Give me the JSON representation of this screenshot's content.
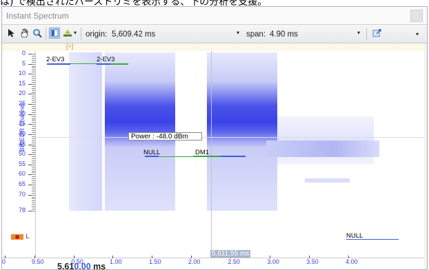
{
  "caption": "は) で検出されたバーストリミを表示する、下の分析を支援。",
  "window": {
    "title": "Instant Spectrum"
  },
  "toolbar": {
    "origin_label": "origin:",
    "origin_value": "5,609.42 ms",
    "span_label": "span:",
    "span_value": "4.90 ms",
    "icons": [
      "pointer-icon",
      "hand-icon",
      "zoom-icon",
      "view-icon",
      "display-options-icon",
      "export-icon"
    ]
  },
  "plot": {
    "strip_marker": "[+]",
    "y_axis": {
      "name": "BR/EDR Channel",
      "ticks": [
        "0",
        "5",
        "10",
        "15",
        "20",
        "25",
        "30",
        "35",
        "40",
        "45",
        "50",
        "55",
        "60",
        "65",
        "70",
        "78"
      ]
    },
    "x_axis": {
      "ticks": [
        "0",
        "9.50",
        "0.50",
        "1.00",
        "1.50",
        "2.00",
        "2.50",
        "3.00",
        "3.50",
        "4.00"
      ],
      "origin_prefix": "5,61",
      "origin_highlight": "0.00",
      "origin_unit": "ms"
    },
    "packets": [
      {
        "label": "2-EV3"
      },
      {
        "label": "2-EV3"
      },
      {
        "label": "NULL"
      },
      {
        "label": "DM1"
      },
      {
        "label": "NULL"
      }
    ],
    "tooltip": "Power    : -48.0 dBm",
    "cursor_time": "5,611.55 ms",
    "legend_label": "L",
    "colors": {
      "spectrum": "#3b43e6",
      "packet_bar": "#3b5cd0",
      "packet_line": "#35a835"
    }
  }
}
